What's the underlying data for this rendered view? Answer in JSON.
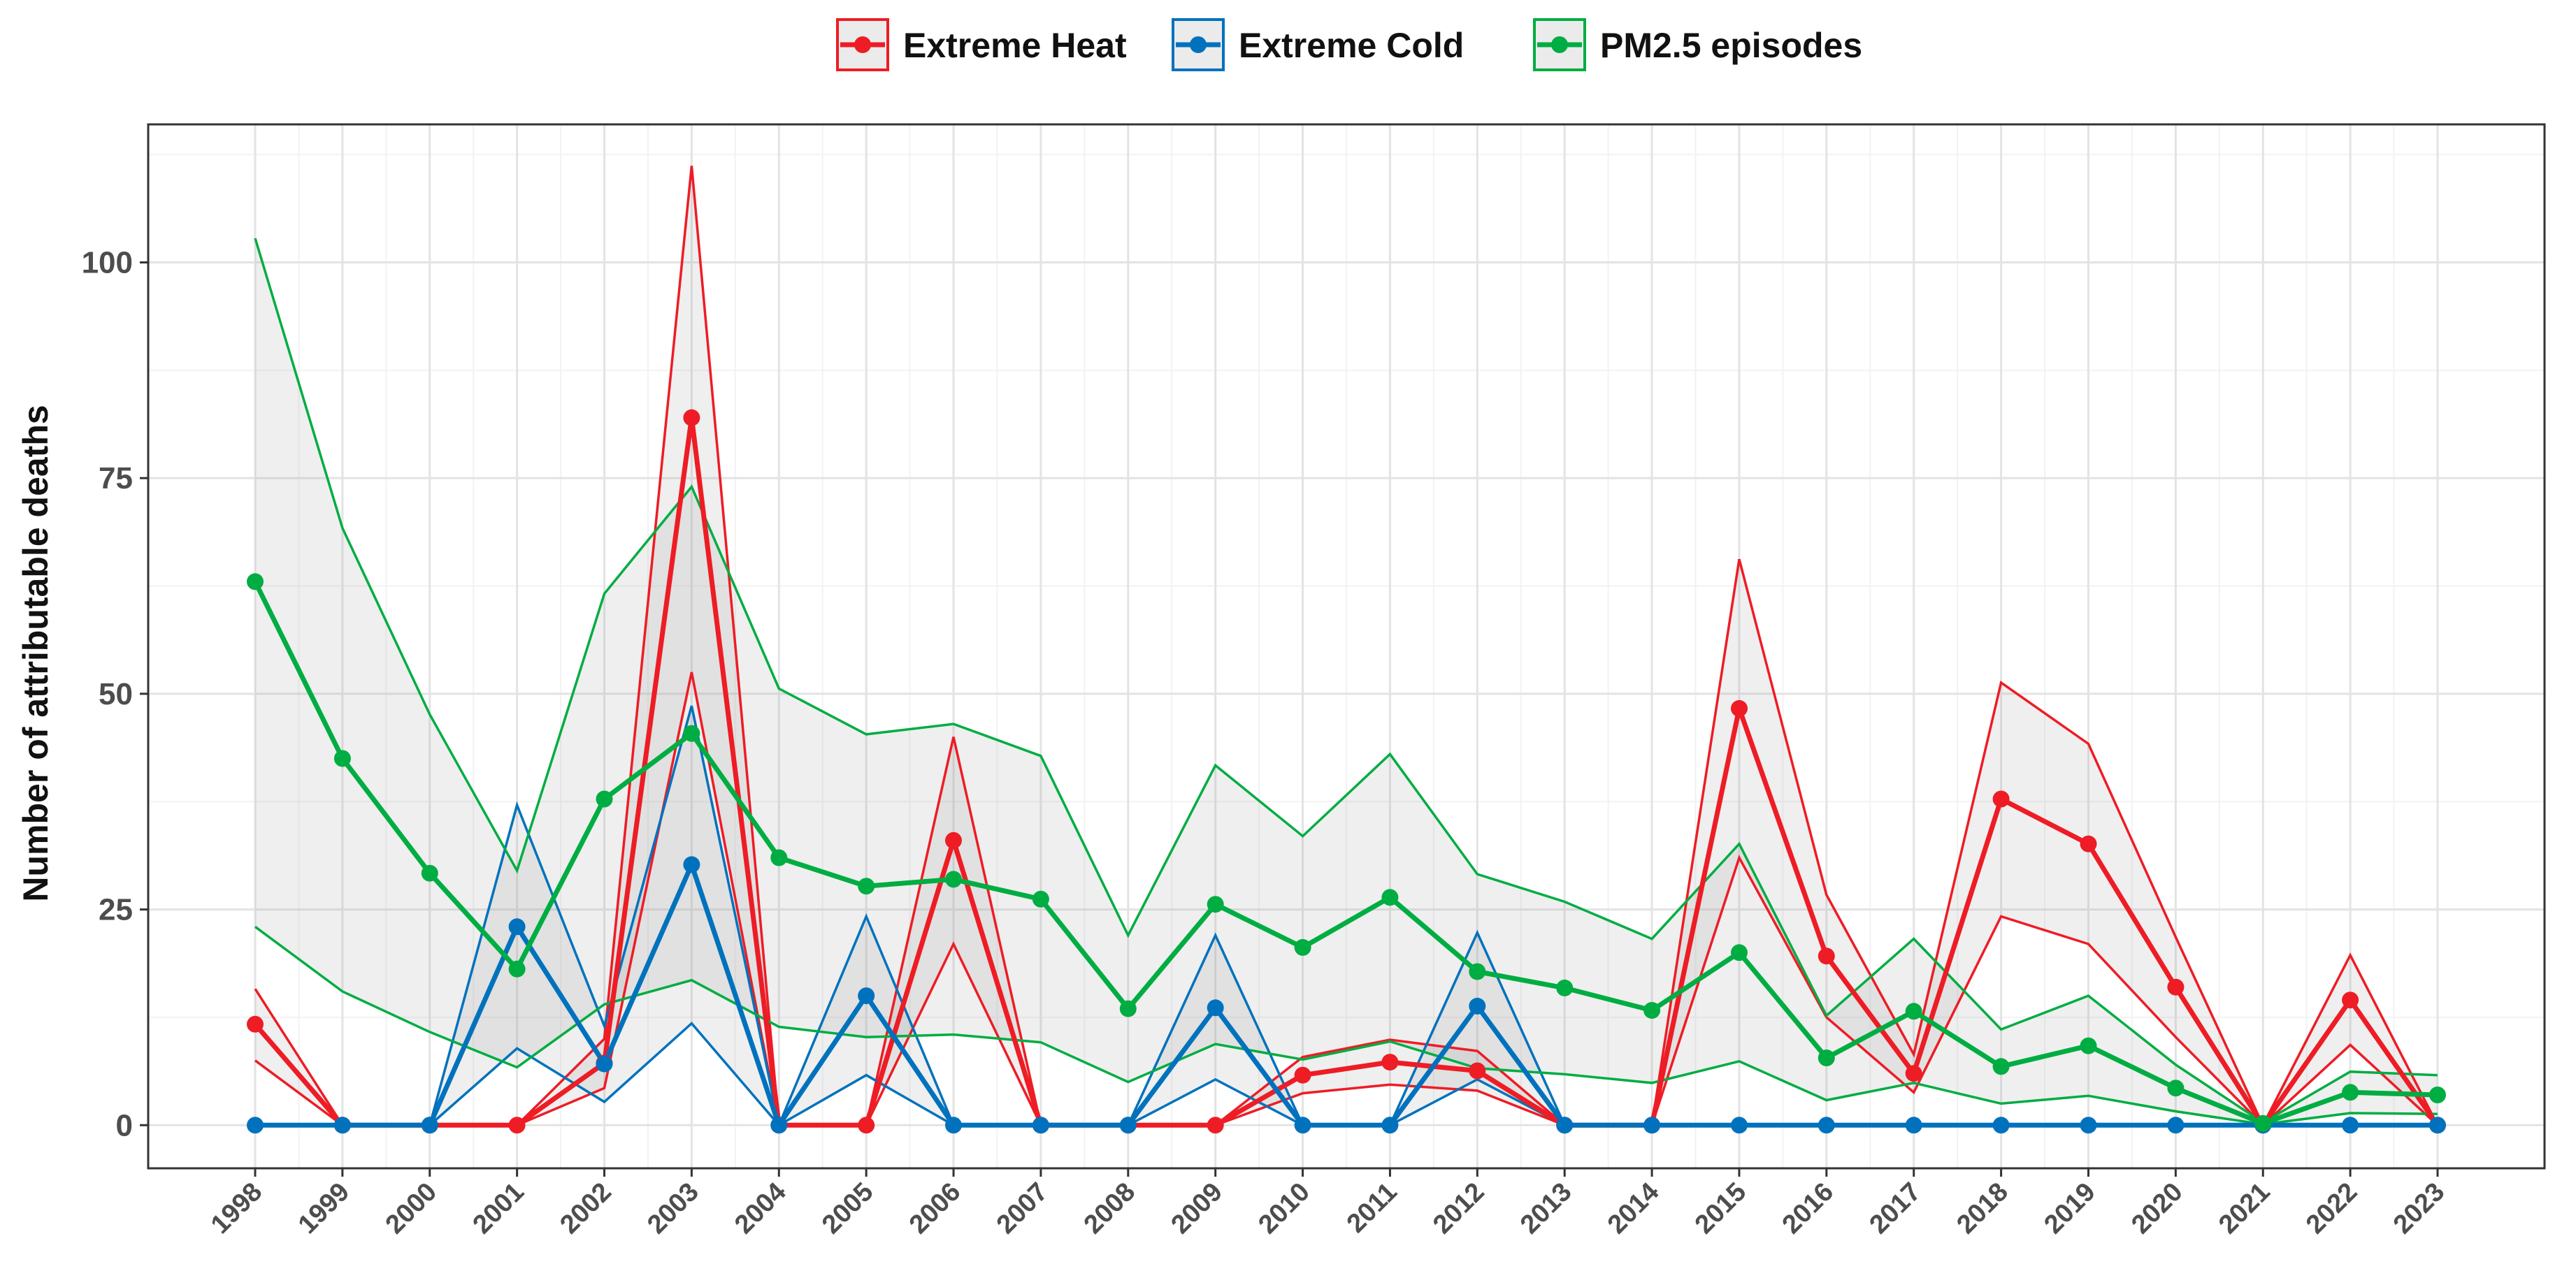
{
  "chart_data": {
    "type": "line",
    "title": "",
    "xlabel": "",
    "ylabel": "Number of attributable deaths",
    "ylim": [
      -5,
      116
    ],
    "yticks": [
      0,
      25,
      50,
      75,
      100
    ],
    "legend_position": "top",
    "grid": true,
    "categories": [
      "1998",
      "1999",
      "2000",
      "2001",
      "2002",
      "2003",
      "2004",
      "2005",
      "2006",
      "2007",
      "2008",
      "2009",
      "2010",
      "2011",
      "2012",
      "2013",
      "2014",
      "2015",
      "2016",
      "2017",
      "2018",
      "2019",
      "2020",
      "2021",
      "2022",
      "2023"
    ],
    "series": [
      {
        "name": "Extreme Heat",
        "color": "#ee1c25",
        "values": [
          11.7,
          0,
          0,
          0,
          7.2,
          82,
          0,
          0,
          33,
          0,
          0,
          0,
          5.8,
          7.3,
          6.3,
          0,
          0,
          48.3,
          19.6,
          6,
          37.8,
          32.6,
          16,
          0,
          14.5,
          0
        ],
        "lower": [
          7.5,
          0,
          0,
          0,
          4.3,
          52.5,
          0,
          0,
          21,
          0,
          0,
          0,
          3.7,
          4.7,
          4,
          0,
          0,
          31,
          12.5,
          3.8,
          24.2,
          21,
          10.2,
          0,
          9.3,
          0
        ],
        "upper": [
          15.8,
          0,
          0,
          0,
          10,
          111.2,
          0,
          0,
          45,
          0,
          0,
          0,
          7.9,
          9.9,
          8.6,
          0,
          0,
          65.6,
          26.7,
          8.2,
          51.3,
          44.2,
          21.8,
          0,
          19.7,
          0
        ]
      },
      {
        "name": "Extreme Cold",
        "color": "#0072bd",
        "values": [
          0,
          0,
          0,
          23,
          7.1,
          30.2,
          0,
          15,
          0,
          0,
          0,
          13.6,
          0,
          0,
          13.8,
          0,
          0,
          0,
          0,
          0,
          0,
          0,
          0,
          0,
          0,
          0
        ],
        "lower": [
          0,
          0,
          0,
          8.9,
          2.7,
          11.8,
          0,
          5.8,
          0,
          0,
          0,
          5.3,
          0,
          0,
          5.3,
          0,
          0,
          0,
          0,
          0,
          0,
          0,
          0,
          0,
          0,
          0
        ],
        "upper": [
          0,
          0,
          0,
          37.1,
          11.5,
          48.6,
          0,
          24.2,
          0,
          0,
          0,
          22,
          0,
          0,
          22.3,
          0,
          0,
          0,
          0,
          0,
          0,
          0,
          0,
          0,
          0,
          0
        ]
      },
      {
        "name": "PM2.5 episodes",
        "color": "#00ad42",
        "values": [
          63,
          42.5,
          29.2,
          18.1,
          37.8,
          45.4,
          31,
          27.7,
          28.5,
          26.2,
          13.5,
          25.6,
          20.6,
          26.4,
          17.8,
          15.9,
          13.3,
          20,
          7.8,
          13.2,
          6.8,
          9.2,
          4.3,
          0.2,
          3.8,
          3.5
        ],
        "lower": [
          23,
          15.5,
          10.8,
          6.7,
          14,
          16.8,
          11.4,
          10.2,
          10.5,
          9.6,
          5,
          9.4,
          7.6,
          9.7,
          6.6,
          5.9,
          4.9,
          7.4,
          2.9,
          4.9,
          2.5,
          3.4,
          1.6,
          0.1,
          1.4,
          1.3
        ],
        "upper": [
          102.8,
          69.2,
          47.6,
          29.5,
          61.6,
          74,
          50.6,
          45.3,
          46.5,
          42.8,
          22,
          41.7,
          33.5,
          43,
          29.1,
          25.9,
          21.6,
          32.6,
          12.7,
          21.6,
          11.1,
          15,
          7,
          0.3,
          6.2,
          5.8
        ]
      }
    ]
  }
}
